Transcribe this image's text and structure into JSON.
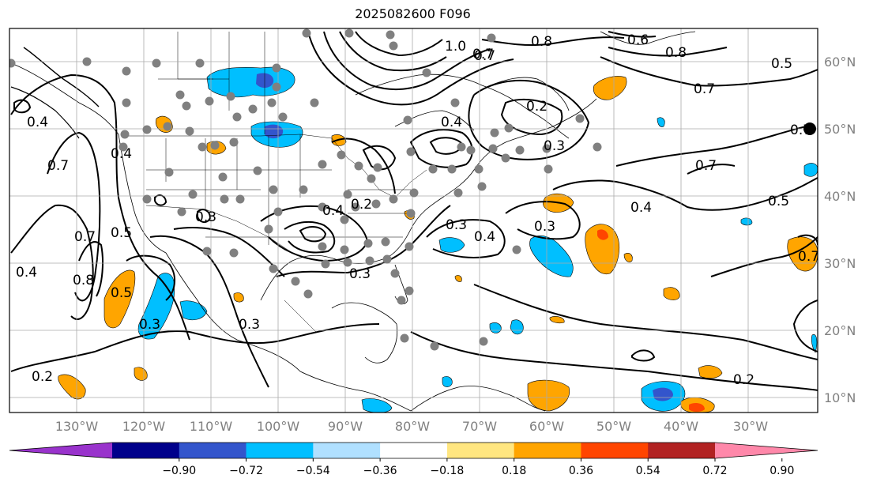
{
  "title": "2025082600 F096",
  "lon_labels": [
    "130°W",
    "120°W",
    "110°W",
    "100°W",
    "90°W",
    "80°W",
    "70°W",
    "60°W",
    "50°W",
    "40°W",
    "30°W"
  ],
  "lat_labels": [
    "60°N",
    "50°N",
    "40°N",
    "30°N",
    "20°N",
    "10°N"
  ],
  "colorbar": {
    "tick_labels": [
      "−0.90",
      "−0.72",
      "−0.54",
      "−0.36",
      "−0.18",
      "0.18",
      "0.36",
      "0.54",
      "0.72",
      "0.90"
    ],
    "colors": [
      "#9933cc",
      "#00008b",
      "#3355cc",
      "#00bfff",
      "#b0e0ff",
      "#ffffff",
      "#ffe680",
      "#ffa500",
      "#ff4500",
      "#b22222",
      "#ff88aa"
    ]
  },
  "contour_labels": [
    {
      "text": "1.0"
    },
    {
      "text": "0.7"
    },
    {
      "text": "0.8"
    },
    {
      "text": "0.6"
    },
    {
      "text": "0.8"
    },
    {
      "text": "0.5"
    },
    {
      "text": "0.7"
    },
    {
      "text": "0.2"
    },
    {
      "text": "0.4"
    },
    {
      "text": "0.3"
    },
    {
      "text": "0.7"
    },
    {
      "text": "0.7"
    },
    {
      "text": "0.4"
    },
    {
      "text": "0.5"
    },
    {
      "text": "0.4"
    },
    {
      "text": "0.4"
    },
    {
      "text": "0.7"
    },
    {
      "text": "0.7"
    },
    {
      "text": "0.4"
    },
    {
      "text": "0.2"
    },
    {
      "text": "0.3"
    },
    {
      "text": "0.3"
    },
    {
      "text": "0.3"
    },
    {
      "text": "0.4"
    },
    {
      "text": "0.3"
    },
    {
      "text": "0.7"
    },
    {
      "text": "0.8"
    },
    {
      "text": "0.5"
    },
    {
      "text": "0.5"
    },
    {
      "text": "0.4"
    },
    {
      "text": "0.3"
    },
    {
      "text": "0.3"
    },
    {
      "text": "0.2"
    },
    {
      "text": "0.2"
    },
    {
      "text": "0.7"
    }
  ],
  "colors": {
    "grid": "#aaaaaa",
    "station": "#808080",
    "contour": "#000000",
    "tick_text": "#808080",
    "land": "#000000"
  }
}
